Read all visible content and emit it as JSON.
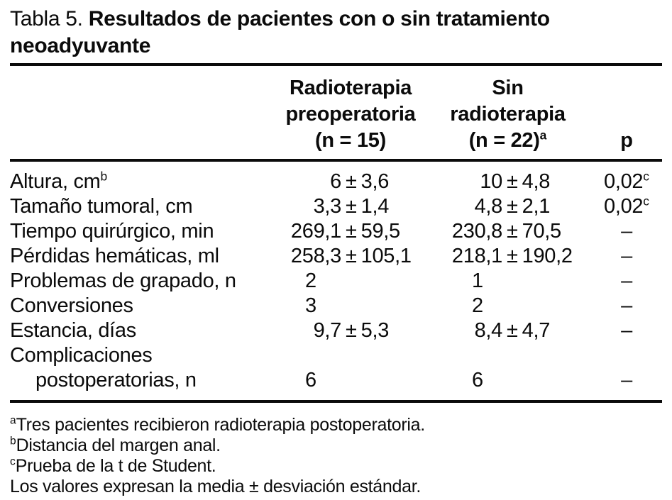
{
  "title": {
    "label": "Tabla 5.",
    "text": "Resultados de pacientes con o sin tratamiento neoadyuvante"
  },
  "table": {
    "columns": [
      {
        "lines": [
          "Radioterapia",
          "preoperatoria",
          "(n = 15)"
        ],
        "sup": ""
      },
      {
        "lines": [
          "Sin",
          "radioterapia",
          "(n = 22)"
        ],
        "sup": "a"
      },
      {
        "label": "p"
      }
    ],
    "rows": [
      {
        "label": "Altura, cm",
        "label_sup": "b",
        "label2": "",
        "c1": {
          "pre": "6",
          "pm": "±",
          "post": "3,6"
        },
        "c2": {
          "pre": "10",
          "pm": "±",
          "post": "4,8"
        },
        "p": "0,02",
        "p_sup": "c"
      },
      {
        "label": "Tamaño tumoral, cm",
        "label_sup": "",
        "label2": "",
        "c1": {
          "pre": "3,3",
          "pm": "±",
          "post": "1,4"
        },
        "c2": {
          "pre": "4,8",
          "pm": "±",
          "post": "2,1"
        },
        "p": "0,02",
        "p_sup": "c"
      },
      {
        "label": "Tiempo quirúrgico, min",
        "label_sup": "",
        "label2": "",
        "c1": {
          "pre": "269,1",
          "pm": "±",
          "post": "59,5"
        },
        "c2": {
          "pre": "230,8",
          "pm": "±",
          "post": "70,5"
        },
        "p": "–",
        "p_sup": ""
      },
      {
        "label": "Pérdidas hemáticas, ml",
        "label_sup": "",
        "label2": "",
        "c1": {
          "pre": "258,3",
          "pm": "±",
          "post": "105,1"
        },
        "c2": {
          "pre": "218,1",
          "pm": "±",
          "post": "190,2"
        },
        "p": "–",
        "p_sup": ""
      },
      {
        "label": "Problemas de grapado, n",
        "label_sup": "",
        "label2": "",
        "c1": {
          "pre": "2",
          "pm": "",
          "post": ""
        },
        "c2": {
          "pre": "1",
          "pm": "",
          "post": ""
        },
        "p": "–",
        "p_sup": ""
      },
      {
        "label": "Conversiones",
        "label_sup": "",
        "label2": "",
        "c1": {
          "pre": "3",
          "pm": "",
          "post": ""
        },
        "c2": {
          "pre": "2",
          "pm": "",
          "post": ""
        },
        "p": "–",
        "p_sup": ""
      },
      {
        "label": "Estancia, días",
        "label_sup": "",
        "label2": "",
        "c1": {
          "pre": "9,7",
          "pm": "±",
          "post": "5,3"
        },
        "c2": {
          "pre": "8,4",
          "pm": "±",
          "post": "4,7"
        },
        "p": "–",
        "p_sup": ""
      },
      {
        "label": "Complicaciones",
        "label_sup": "",
        "label2": "postoperatorias, n",
        "c1": {
          "pre": "6",
          "pm": "",
          "post": ""
        },
        "c2": {
          "pre": "6",
          "pm": "",
          "post": ""
        },
        "p": "–",
        "p_sup": ""
      }
    ]
  },
  "footnotes": [
    {
      "sup": "a",
      "text": "Tres pacientes recibieron radioterapia postoperatoria."
    },
    {
      "sup": "b",
      "text": "Distancia del margen anal."
    },
    {
      "sup": "c",
      "text": "Prueba de la t de Student."
    },
    {
      "sup": "",
      "text": "Los valores expresan la media ± desviación estándar."
    }
  ]
}
